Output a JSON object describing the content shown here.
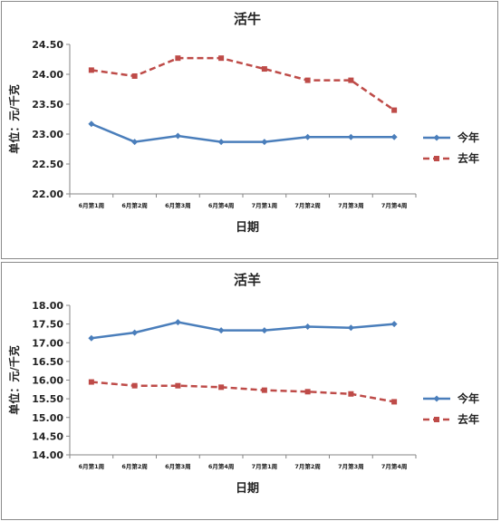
{
  "chart_data": [
    {
      "type": "line",
      "title": "活牛",
      "xlabel": "日期",
      "ylabel": "单位：元/千克",
      "categories": [
        "6月第1周",
        "6月第2周",
        "6月第3周",
        "6月第4周",
        "7月第1周",
        "7月第2周",
        "7月第3周",
        "7月第4周"
      ],
      "ylim": [
        22.0,
        24.5
      ],
      "yticks": [
        "22.00",
        "22.50",
        "23.00",
        "23.50",
        "24.00",
        "24.50"
      ],
      "legend_position": "right",
      "series": [
        {
          "name": "今年",
          "color": "#4a7ebb",
          "dashed": false,
          "marker": "diamond",
          "values": [
            23.17,
            22.87,
            22.97,
            22.87,
            22.87,
            22.95,
            22.95,
            22.95
          ]
        },
        {
          "name": "去年",
          "color": "#be4b48",
          "dashed": true,
          "marker": "square",
          "values": [
            24.07,
            23.97,
            24.27,
            24.27,
            24.09,
            23.9,
            23.9,
            23.4
          ]
        }
      ]
    },
    {
      "type": "line",
      "title": "活羊",
      "xlabel": "日期",
      "ylabel": "单位：元/千克",
      "categories": [
        "6月第1周",
        "6月第2周",
        "6月第3周",
        "6月第4周",
        "7月第1周",
        "7月第2周",
        "7月第3周",
        "7月第4周"
      ],
      "ylim": [
        14.0,
        18.0
      ],
      "yticks": [
        "14.00",
        "14.50",
        "15.00",
        "15.50",
        "16.00",
        "16.50",
        "17.00",
        "17.50",
        "18.00"
      ],
      "legend_position": "right",
      "series": [
        {
          "name": "今年",
          "color": "#4a7ebb",
          "dashed": false,
          "marker": "diamond",
          "values": [
            17.12,
            17.27,
            17.55,
            17.33,
            17.33,
            17.43,
            17.4,
            17.5
          ]
        },
        {
          "name": "去年",
          "color": "#be4b48",
          "dashed": true,
          "marker": "square",
          "values": [
            15.95,
            15.85,
            15.85,
            15.81,
            15.73,
            15.69,
            15.63,
            15.42
          ]
        }
      ]
    }
  ]
}
